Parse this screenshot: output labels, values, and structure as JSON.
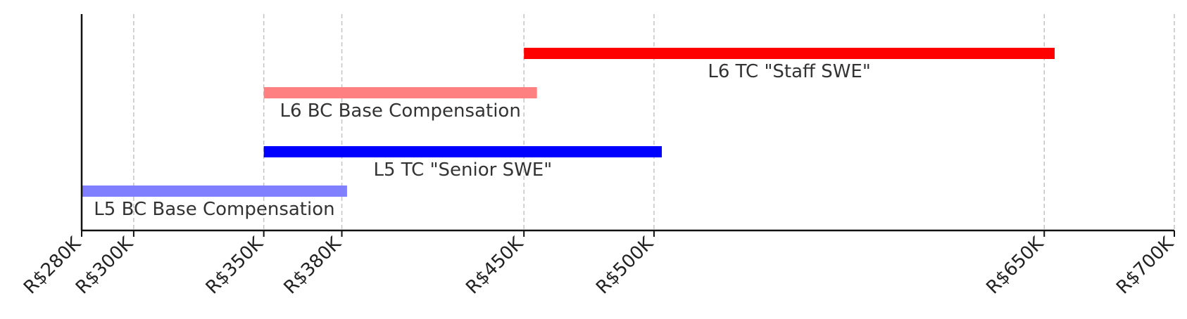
{
  "chart_data": {
    "type": "bar",
    "orientation": "horizontal-range",
    "title": "",
    "xlabel": "",
    "ylabel": "",
    "x_tick_labels": [
      "R$280K",
      "R$300K",
      "R$350K",
      "R$380K",
      "R$450K",
      "R$500K",
      "R$650K",
      "R$700K"
    ],
    "x_tick_values": [
      280,
      300,
      350,
      380,
      450,
      500,
      650,
      700
    ],
    "xlim": [
      280,
      700
    ],
    "grid": "vertical dashed at ticks",
    "legend": "none",
    "series": [
      {
        "label": "L5 BC Base Compensation",
        "start": 280,
        "end": 382,
        "color": "#8080ff"
      },
      {
        "label": "L5 TC \"Senior SWE\"",
        "start": 350,
        "end": 503,
        "color": "#0000ff"
      },
      {
        "label": "L6 BC Base Compensation",
        "start": 350,
        "end": 455,
        "color": "#ff8080"
      },
      {
        "label": "L6 TC \"Staff SWE\"",
        "start": 450,
        "end": 654,
        "color": "#ff0000"
      }
    ]
  }
}
